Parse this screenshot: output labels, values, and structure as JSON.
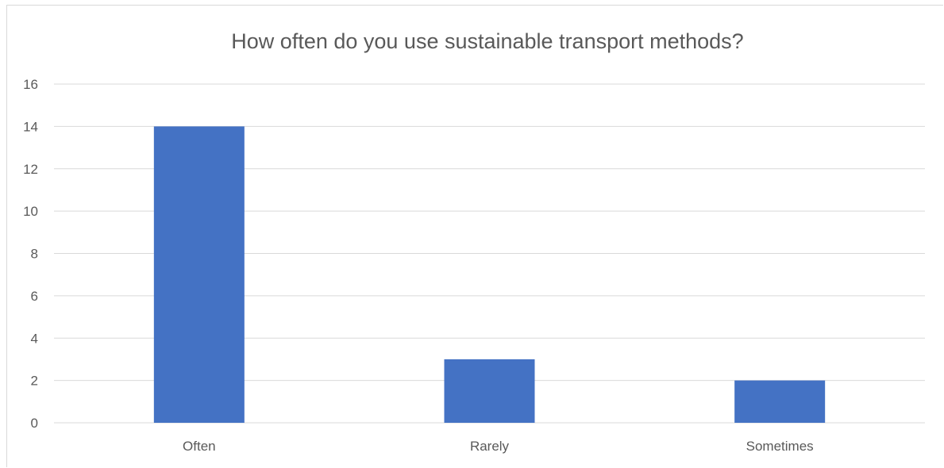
{
  "chart_data": {
    "type": "bar",
    "title": "How often do you use sustainable transport methods?",
    "xlabel": "",
    "ylabel": "",
    "categories": [
      "Often",
      "Rarely",
      "Sometimes"
    ],
    "values": [
      14,
      3,
      2
    ],
    "ylim": [
      0,
      16
    ],
    "yticks": [
      "0",
      "2",
      "4",
      "6",
      "8",
      "10",
      "12",
      "14",
      "16"
    ],
    "grid": true,
    "legend": "none",
    "bar_color": "#4472C4",
    "grid_color": "#D9D9D9",
    "text_color": "#595959"
  }
}
